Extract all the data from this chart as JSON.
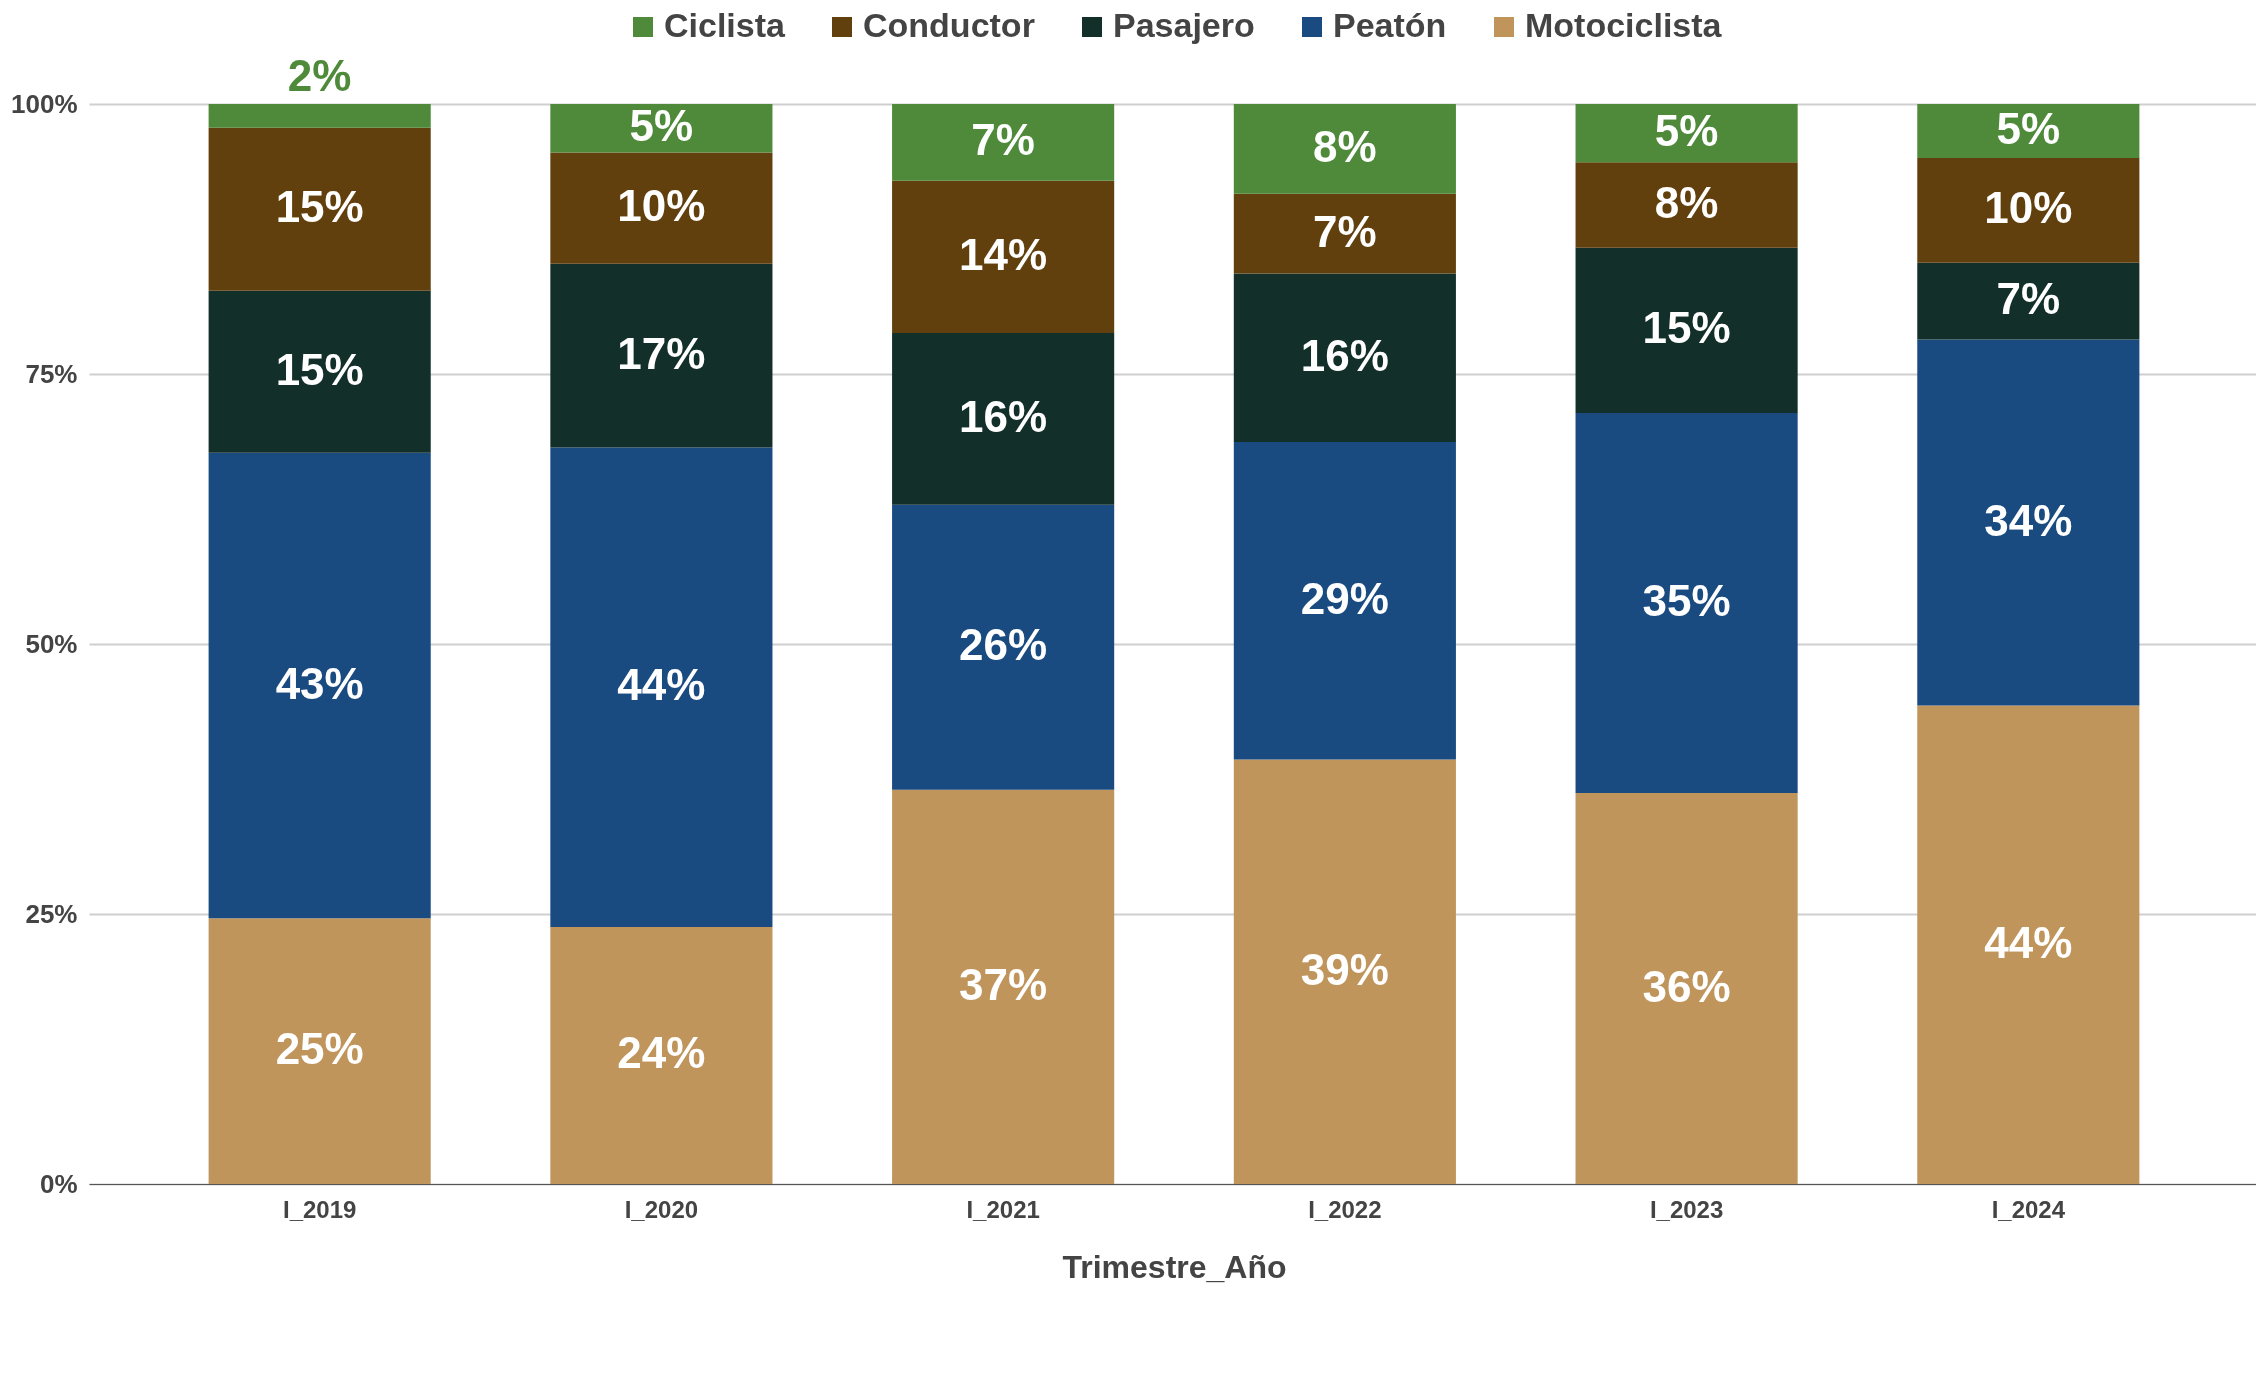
{
  "chart_data": {
    "type": "bar",
    "stacked": true,
    "xlabel": "Trimestre_Año",
    "categories": [
      "I_2019",
      "I_2020",
      "I_2021",
      "I_2022",
      "I_2023",
      "I_2024"
    ],
    "series": [
      {
        "name": "Motociclista",
        "color": "#bf955c",
        "values": [
          24.6,
          23.8,
          36.5,
          39.3,
          36.2,
          44.3
        ],
        "value_labels": [
          "25%",
          "24%",
          "37%",
          "39%",
          "36%",
          "44%"
        ]
      },
      {
        "name": "Peatón",
        "color": "#194a80",
        "values": [
          43.1,
          44.4,
          26.4,
          29.4,
          35.2,
          33.9
        ],
        "value_labels": [
          "43%",
          "44%",
          "26%",
          "29%",
          "35%",
          "34%"
        ]
      },
      {
        "name": "Pasajero",
        "color": "#122f29",
        "values": [
          15.0,
          17.0,
          15.9,
          15.6,
          15.3,
          7.1
        ],
        "value_labels": [
          "15%",
          "17%",
          "16%",
          "16%",
          "15%",
          "7%"
        ]
      },
      {
        "name": "Conductor",
        "color": "#62400d",
        "values": [
          15.1,
          10.3,
          14.1,
          7.4,
          7.9,
          9.7
        ],
        "value_labels": [
          "15%",
          "10%",
          "14%",
          "7%",
          "8%",
          "10%"
        ]
      },
      {
        "name": "Ciclista",
        "color": "#4e8a3a",
        "values": [
          2.2,
          4.5,
          7.1,
          8.3,
          5.4,
          5.0
        ],
        "value_labels": [
          "2%",
          "5%",
          "7%",
          "8%",
          "5%",
          "5%"
        ]
      }
    ],
    "ylim": [
      0,
      100
    ],
    "yticks": [
      {
        "value": 0,
        "label": "0%"
      },
      {
        "value": 25,
        "label": "25%"
      },
      {
        "value": 50,
        "label": "50%"
      },
      {
        "value": 75,
        "label": "75%"
      },
      {
        "value": 100,
        "label": "100%"
      }
    ],
    "grid": "y",
    "legend": "top"
  }
}
